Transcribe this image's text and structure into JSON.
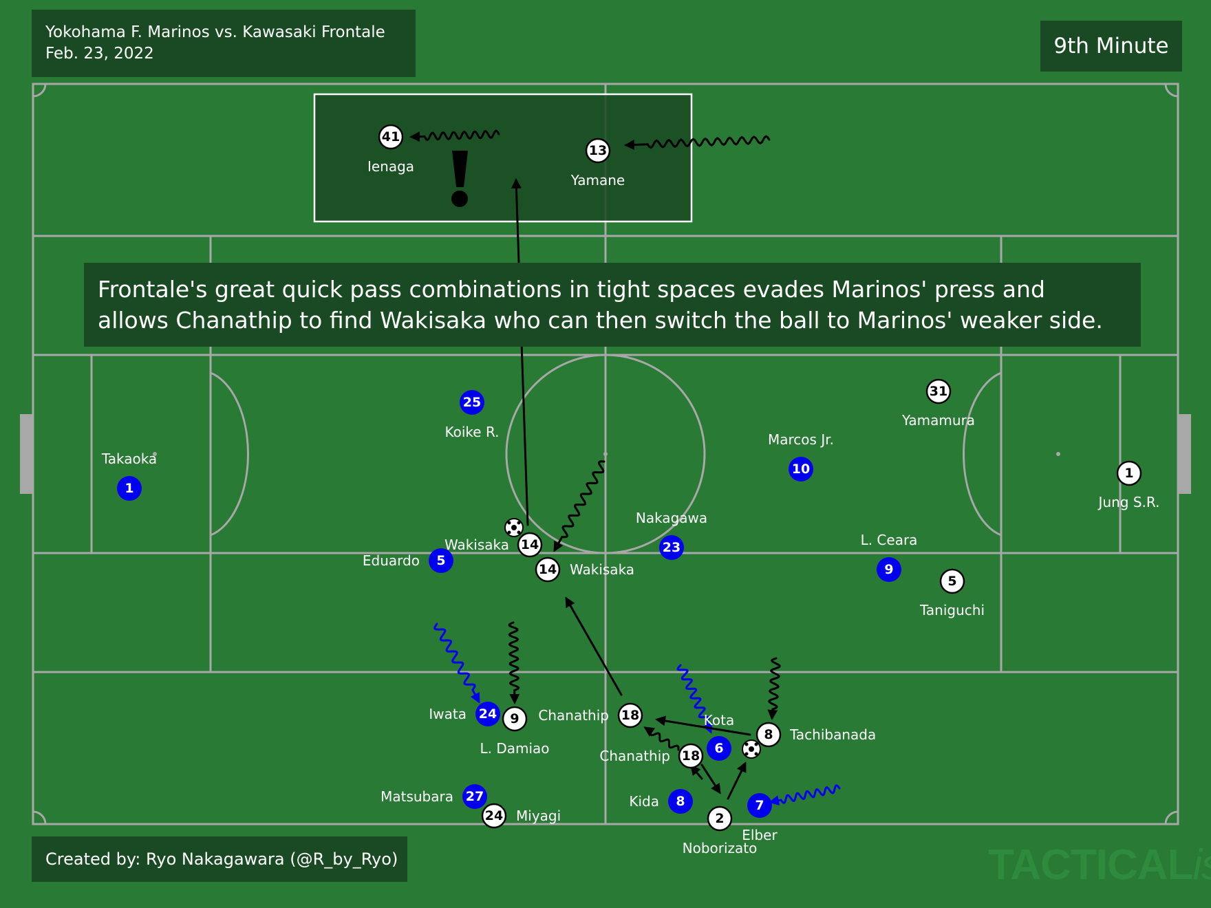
{
  "header": {
    "match": "Yokohama F. Marinos vs. Kawasaki Frontale",
    "date": "Feb. 23, 2022",
    "minute": "9th Minute"
  },
  "caption_lines": [
    "Frontale's great quick pass combinations in tight spaces evades Marinos' press and",
    "allows Chanathip to find Wakisaka who can then switch the ball to Marinos' weaker side."
  ],
  "credit": "Created by: Ryo Nakagawara (@R_by_Ryo)",
  "watermark": {
    "main": "TACTICAL",
    "suffix": "ista"
  },
  "callout_symbol": "!",
  "colors": {
    "pitch": "#297a35",
    "panel": "#1a4a23",
    "lines": "#a8a8a8",
    "marinos": "#0000ee",
    "frontale": "#ffffff",
    "arrow": "#000000"
  },
  "players": {
    "frontale": [
      {
        "number": "41",
        "name": "Ienaga"
      },
      {
        "number": "13",
        "name": "Yamane"
      },
      {
        "number": "14",
        "name": "Wakisaka"
      },
      {
        "number": "14",
        "name": "Wakisaka"
      },
      {
        "number": "18",
        "name": "Chanathip"
      },
      {
        "number": "18",
        "name": "Chanathip"
      },
      {
        "number": "9",
        "name": "L. Damiao"
      },
      {
        "number": "8",
        "name": "Tachibanada"
      },
      {
        "number": "2",
        "name": "Noborizato"
      },
      {
        "number": "24",
        "name": "Miyagi"
      },
      {
        "number": "31",
        "name": "Yamamura"
      },
      {
        "number": "5",
        "name": "Taniguchi"
      },
      {
        "number": "1",
        "name": "Jung S.R."
      }
    ],
    "marinos": [
      {
        "number": "1",
        "name": "Takaoka"
      },
      {
        "number": "25",
        "name": "Koike R."
      },
      {
        "number": "5",
        "name": "Eduardo"
      },
      {
        "number": "23",
        "name": "Nakagawa"
      },
      {
        "number": "10",
        "name": "Marcos Jr."
      },
      {
        "number": "9",
        "name": "L. Ceara"
      },
      {
        "number": "24",
        "name": "Iwata"
      },
      {
        "number": "6",
        "name": "Kota"
      },
      {
        "number": "8",
        "name": "Kida"
      },
      {
        "number": "7",
        "name": "Elber"
      },
      {
        "number": "27",
        "name": "Matsubara"
      }
    ]
  }
}
